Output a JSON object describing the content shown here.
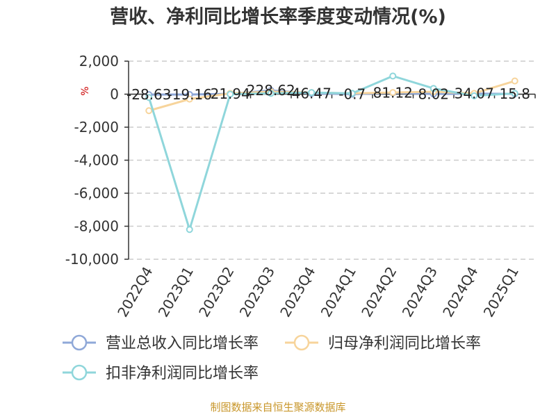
{
  "chart_data": {
    "type": "line",
    "title": "营收、净利同比增长率季度变动情况(%)",
    "unit_label": "%",
    "categories": [
      "2022Q4",
      "2023Q1",
      "2023Q2",
      "2023Q3",
      "2023Q4",
      "2024Q1",
      "2024Q2",
      "2024Q3",
      "2024Q4",
      "2025Q1"
    ],
    "ylim": [
      -10000,
      2000
    ],
    "yticks": [
      {
        "value": 2000,
        "label": "2,000"
      },
      {
        "value": 0,
        "label": "0"
      },
      {
        "value": -2000,
        "label": "-2,000"
      },
      {
        "value": -4000,
        "label": "-4,000"
      },
      {
        "value": -6000,
        "label": "-6,000"
      },
      {
        "value": -8000,
        "label": "-8,000"
      },
      {
        "value": -10000,
        "label": "-10,000"
      }
    ],
    "grid": true,
    "legend_position": "bottom",
    "series": [
      {
        "name": "营业总收入同比增长率",
        "color": "#8fa8d8",
        "values": [
          -28.63,
          -19.16,
          21.94,
          228.62,
          46.47,
          -0.7,
          81.12,
          8.02,
          34.07,
          15.8
        ],
        "labels": [
          "-28.63",
          "-19.16",
          "21.94",
          "228.62",
          "46.47",
          "-0.7",
          "81.12",
          "8.02",
          "34.07",
          "15.8"
        ]
      },
      {
        "name": "归母净利润同比增长率",
        "color": "#f7d49b",
        "values": [
          -1000,
          -300,
          50,
          150,
          100,
          50,
          100,
          150,
          50,
          800
        ]
      },
      {
        "name": "扣非净利润同比增长率",
        "color": "#8fd6db",
        "values": [
          -200,
          -8200,
          0,
          50,
          100,
          50,
          1100,
          350,
          -100,
          50
        ]
      }
    ]
  },
  "source_text": "制图数据来自恒生聚源数据库"
}
